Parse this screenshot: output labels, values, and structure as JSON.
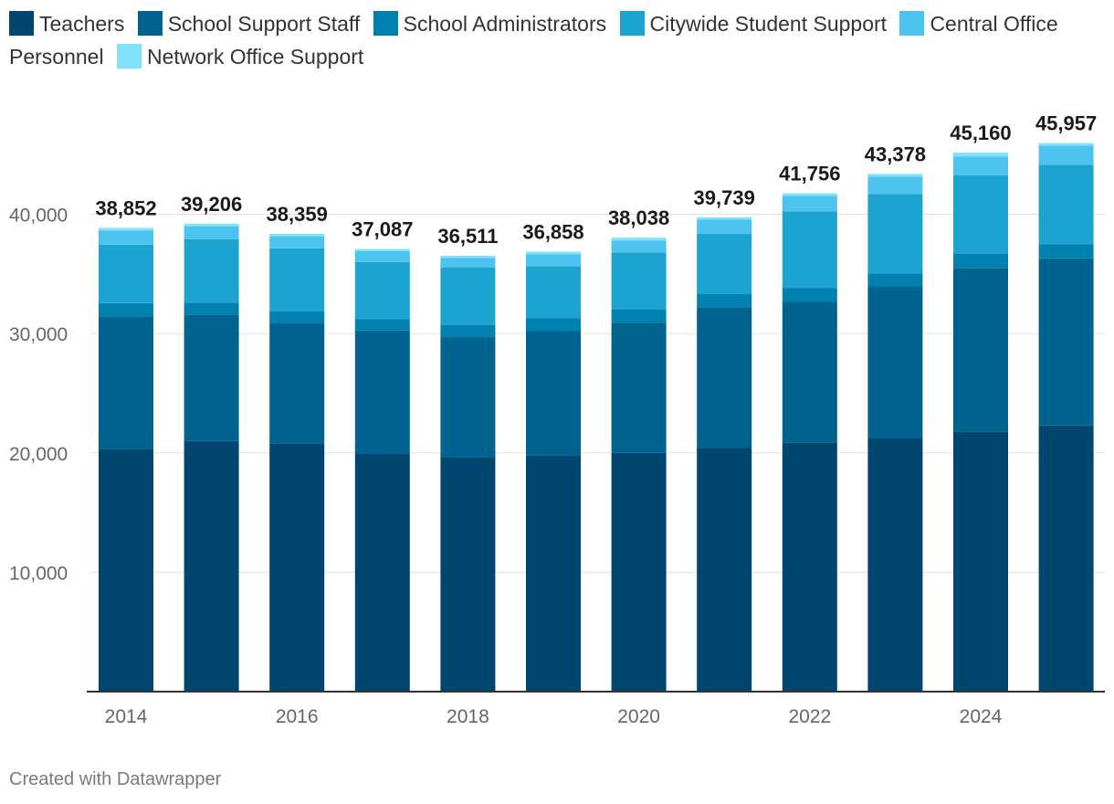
{
  "chart_data": {
    "type": "bar",
    "stacked": true,
    "categories": [
      "2014",
      "2015",
      "2016",
      "2017",
      "2018",
      "2019",
      "2020",
      "2021",
      "2022",
      "2023",
      "2024",
      "2025"
    ],
    "x_tick_labels": [
      "2014",
      "2016",
      "2018",
      "2020",
      "2022",
      "2024"
    ],
    "series": [
      {
        "name": "Teachers",
        "color": "#00466e",
        "values": [
          20350,
          21000,
          20750,
          19950,
          19600,
          19800,
          20000,
          20400,
          20850,
          21250,
          21800,
          22300
        ]
      },
      {
        "name": "School Support Staff",
        "color": "#00628f",
        "values": [
          11100,
          10600,
          10100,
          10300,
          10100,
          10400,
          10900,
          11800,
          11800,
          12700,
          13700,
          14000
        ]
      },
      {
        "name": "School Administrators",
        "color": "#0080ae",
        "values": [
          1100,
          1000,
          1000,
          950,
          1000,
          1100,
          1100,
          1100,
          1150,
          1100,
          1200,
          1200
        ]
      },
      {
        "name": "Citywide Student Support",
        "color": "#1ca3d0",
        "values": [
          4900,
          5300,
          5300,
          4800,
          4850,
          4350,
          4800,
          5050,
          6450,
          6650,
          6550,
          6650
        ]
      },
      {
        "name": "Central Office Personnel",
        "color": "#4dc3ef",
        "values": [
          1200,
          1100,
          1000,
          900,
          800,
          1000,
          1000,
          1200,
          1300,
          1450,
          1600,
          1600
        ]
      },
      {
        "name": "Network Office Support",
        "color": "#7de2fa",
        "values": [
          202,
          206,
          209,
          187,
          161,
          208,
          238,
          189,
          206,
          228,
          310,
          207
        ]
      }
    ],
    "totals": [
      "38,852",
      "39,206",
      "38,359",
      "37,087",
      "36,511",
      "36,858",
      "38,038",
      "39,739",
      "41,756",
      "43,378",
      "45,160",
      "45,957"
    ],
    "y_ticks": [
      10000,
      20000,
      30000,
      40000
    ],
    "y_tick_labels": [
      "10,000",
      "20,000",
      "30,000",
      "40,000"
    ],
    "ylim": [
      0,
      48000
    ],
    "grid": true,
    "legend_position": "top"
  },
  "footer": {
    "credit": "Created with Datawrapper"
  }
}
